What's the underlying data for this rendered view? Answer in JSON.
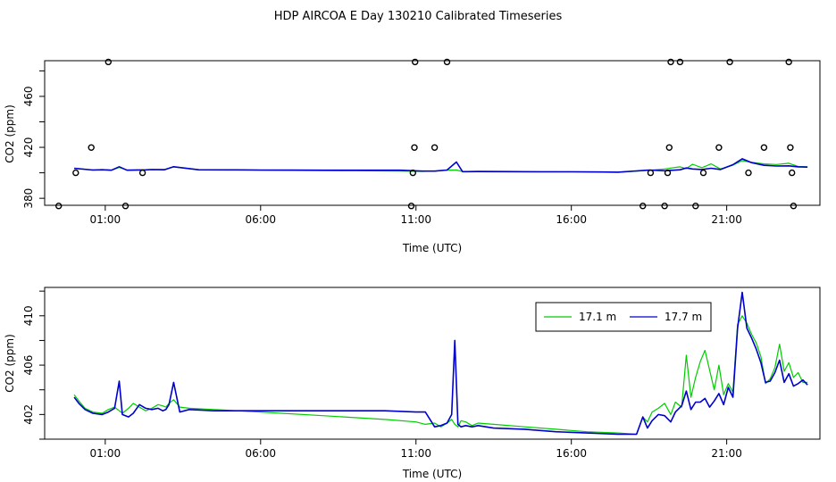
{
  "title": "HDP AIRCOA E  Day 130210  Calibrated Timeseries",
  "chart_data": [
    {
      "type": "line",
      "panel": "top",
      "xlabel": "Time (UTC)",
      "ylabel": "CO2 (ppm)",
      "x_ticks": [
        1,
        6,
        11,
        16,
        21
      ],
      "x_tick_labels": [
        "01:00",
        "06:00",
        "11:00",
        "16:00",
        "21:00"
      ],
      "y_ticks": [
        380,
        420,
        460
      ],
      "xlim": [
        -0.95,
        24.0
      ],
      "ylim": [
        374.5,
        488
      ],
      "legend": "none",
      "grid": false,
      "series": [
        {
          "color": "#00cc00",
          "x": [
            0.0,
            0.6,
            0.9,
            1.2,
            1.45,
            1.7,
            2.3,
            2.5,
            2.9,
            3.2,
            4.0,
            5.2,
            6.0,
            7.0,
            8.0,
            9.0,
            10.0,
            10.5,
            11.2,
            11.6,
            12.0,
            12.3,
            12.5,
            13.0,
            14.0,
            15.0,
            16.0,
            17.0,
            17.5,
            18.5,
            19.0,
            19.5,
            19.7,
            19.9,
            20.2,
            20.5,
            20.8,
            21.2,
            21.5,
            21.8,
            22.2,
            22.6,
            23.0,
            23.3,
            23.6
          ],
          "y": [
            403.5,
            402.3,
            402.5,
            402.1,
            404.2,
            402.2,
            402.4,
            402.7,
            402.6,
            404.6,
            402.5,
            402.4,
            402.1,
            401.9,
            401.7,
            401.6,
            401.5,
            401.4,
            401.1,
            401.3,
            402.1,
            402.2,
            401.0,
            401.2,
            401.1,
            401.0,
            400.9,
            400.7,
            400.5,
            401.9,
            403.0,
            404.7,
            403.3,
            406.7,
            404.0,
            407.0,
            403.0,
            406.0,
            409.5,
            408.2,
            407.0,
            406.5,
            407.5,
            405.0,
            404.8
          ]
        },
        {
          "color": "#0000cc",
          "x": [
            0.0,
            0.6,
            0.9,
            1.2,
            1.45,
            1.7,
            2.3,
            2.5,
            2.9,
            3.2,
            4.0,
            5.2,
            6.0,
            7.0,
            8.0,
            9.0,
            10.0,
            10.5,
            11.2,
            11.6,
            12.0,
            12.3,
            12.5,
            13.0,
            14.0,
            15.0,
            16.0,
            17.0,
            17.5,
            18.5,
            19.0,
            19.5,
            19.7,
            19.9,
            20.2,
            20.5,
            20.8,
            21.2,
            21.5,
            21.8,
            22.2,
            22.6,
            23.0,
            23.3,
            23.6
          ],
          "y": [
            403.5,
            402.2,
            402.4,
            402.0,
            404.8,
            402.0,
            402.3,
            402.5,
            402.4,
            404.8,
            402.4,
            402.3,
            402.2,
            402.1,
            402.0,
            402.0,
            402.0,
            402.0,
            401.3,
            401.3,
            402.2,
            408.5,
            400.9,
            401.0,
            400.9,
            400.8,
            400.8,
            400.6,
            400.5,
            402.2,
            401.6,
            402.4,
            403.8,
            403.0,
            402.6,
            403.6,
            402.6,
            406.4,
            411.0,
            408.0,
            405.9,
            405.3,
            405.5,
            404.7,
            404.5
          ]
        }
      ],
      "outlier_points": {
        "x": [
          -0.5,
          0.05,
          0.55,
          1.1,
          1.65,
          2.2,
          10.85,
          10.9,
          10.95,
          10.97,
          11.6,
          12.0,
          18.3,
          18.55,
          19.0,
          19.1,
          19.15,
          19.2,
          19.5,
          20.0,
          20.25,
          20.75,
          21.1,
          21.7,
          22.2,
          23.0,
          23.05,
          23.1,
          23.15
        ],
        "y": [
          374,
          400,
          419.8,
          487,
          374,
          400,
          374,
          400,
          419.8,
          487,
          419.8,
          487,
          374,
          400,
          374,
          400,
          419.8,
          487,
          487,
          374,
          400,
          419.8,
          487,
          400,
          419.8,
          487,
          419.8,
          400,
          374
        ]
      }
    },
    {
      "type": "line",
      "panel": "bottom",
      "xlabel": "Time (UTC)",
      "ylabel": "CO2 (ppm)",
      "x_ticks": [
        1,
        6,
        11,
        16,
        21
      ],
      "x_tick_labels": [
        "01:00",
        "06:00",
        "11:00",
        "16:00",
        "21:00"
      ],
      "y_ticks": [
        402,
        406,
        410
      ],
      "xlim": [
        -0.95,
        24.0
      ],
      "ylim": [
        400.0,
        412.3
      ],
      "legend": "top-right",
      "grid": false,
      "series": [
        {
          "name": "17.1 m",
          "color": "#00cc00",
          "x": [
            0.0,
            0.15,
            0.35,
            0.6,
            0.9,
            1.1,
            1.3,
            1.45,
            1.55,
            1.75,
            1.9,
            2.1,
            2.3,
            2.5,
            2.7,
            2.85,
            2.95,
            3.05,
            3.2,
            3.4,
            3.7,
            4.5,
            6.0,
            8.0,
            10.0,
            11.0,
            11.3,
            11.6,
            11.8,
            12.0,
            12.15,
            12.25,
            12.35,
            12.45,
            12.6,
            12.8,
            13.0,
            13.5,
            14.5,
            15.5,
            16.5,
            17.5,
            18.1,
            18.3,
            18.45,
            18.6,
            18.8,
            19.0,
            19.2,
            19.35,
            19.55,
            19.7,
            19.85,
            20.0,
            20.15,
            20.3,
            20.45,
            20.6,
            20.75,
            20.9,
            21.05,
            21.2,
            21.35,
            21.5,
            21.65,
            21.8,
            21.95,
            22.1,
            22.25,
            22.4,
            22.55,
            22.7,
            22.85,
            23.0,
            23.15,
            23.3,
            23.45,
            23.6
          ],
          "y": [
            403.6,
            403.1,
            402.5,
            402.2,
            402.1,
            402.4,
            402.6,
            402.3,
            402.1,
            402.5,
            402.9,
            402.6,
            402.3,
            402.5,
            402.8,
            402.7,
            402.6,
            402.9,
            403.2,
            402.6,
            402.5,
            402.4,
            402.2,
            401.9,
            401.6,
            401.4,
            401.2,
            401.3,
            401.0,
            401.3,
            401.6,
            401.2,
            401.0,
            401.5,
            401.4,
            401.1,
            401.3,
            401.2,
            401.0,
            400.8,
            400.6,
            400.5,
            400.4,
            401.8,
            401.4,
            402.2,
            402.5,
            402.9,
            402.0,
            403.0,
            402.6,
            406.8,
            403.4,
            405.0,
            406.3,
            407.2,
            405.6,
            404.0,
            406.0,
            403.6,
            404.5,
            403.8,
            409.3,
            410.0,
            409.4,
            408.5,
            407.8,
            406.7,
            404.5,
            404.9,
            405.8,
            407.7,
            405.5,
            406.2,
            405.0,
            405.4,
            404.6,
            404.6
          ]
        },
        {
          "name": "17.7 m",
          "color": "#0000cc",
          "x": [
            0.0,
            0.15,
            0.35,
            0.6,
            0.9,
            1.1,
            1.3,
            1.45,
            1.55,
            1.75,
            1.9,
            2.1,
            2.3,
            2.5,
            2.7,
            2.85,
            2.95,
            3.05,
            3.2,
            3.4,
            3.7,
            4.5,
            6.0,
            8.0,
            10.0,
            11.0,
            11.3,
            11.6,
            11.8,
            12.0,
            12.15,
            12.25,
            12.35,
            12.45,
            12.6,
            12.8,
            13.0,
            13.5,
            14.5,
            15.5,
            16.5,
            17.5,
            18.1,
            18.3,
            18.45,
            18.6,
            18.8,
            19.0,
            19.2,
            19.35,
            19.55,
            19.7,
            19.85,
            20.0,
            20.15,
            20.3,
            20.45,
            20.6,
            20.75,
            20.9,
            21.05,
            21.2,
            21.35,
            21.5,
            21.65,
            21.8,
            21.95,
            22.1,
            22.25,
            22.4,
            22.55,
            22.7,
            22.85,
            23.0,
            23.15,
            23.3,
            23.45,
            23.6
          ],
          "y": [
            403.4,
            402.9,
            402.4,
            402.1,
            402.0,
            402.2,
            402.5,
            404.7,
            402.0,
            401.8,
            402.1,
            402.8,
            402.5,
            402.4,
            402.5,
            402.3,
            402.4,
            402.8,
            404.6,
            402.2,
            402.4,
            402.3,
            402.3,
            402.3,
            402.3,
            402.2,
            402.2,
            401.0,
            401.1,
            401.3,
            402.0,
            408.0,
            401.2,
            401.0,
            401.1,
            401.0,
            401.1,
            400.9,
            400.8,
            400.6,
            400.5,
            400.4,
            400.4,
            401.8,
            400.9,
            401.5,
            402.0,
            401.9,
            401.4,
            402.2,
            402.7,
            403.9,
            402.4,
            403.0,
            403.0,
            403.3,
            402.6,
            403.1,
            403.7,
            402.8,
            404.2,
            403.4,
            409.0,
            411.9,
            409.0,
            408.2,
            407.3,
            406.2,
            404.6,
            404.7,
            405.4,
            406.4,
            404.6,
            405.3,
            404.3,
            404.5,
            404.8,
            404.4
          ]
        }
      ]
    }
  ]
}
